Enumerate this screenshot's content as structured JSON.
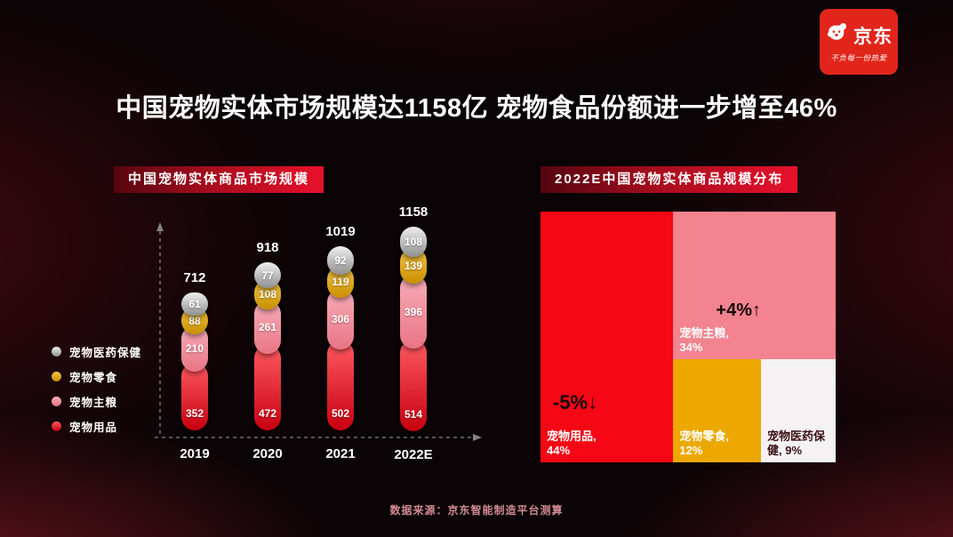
{
  "logo": {
    "brand": "京东",
    "slogan": "不负每一份热爱"
  },
  "title": "中国宠物实体市场规模达1158亿 宠物食品份额进一步增至46%",
  "footer": "数据来源：京东智能制造平台测算",
  "chart_data": [
    {
      "type": "bar",
      "stacked": true,
      "title": "中国宠物实体商品市场规模",
      "categories": [
        "2019",
        "2020",
        "2021",
        "2022E"
      ],
      "totals": [
        712,
        918,
        1019,
        1158
      ],
      "series": [
        {
          "name": "宠物用品",
          "values": [
            352,
            472,
            502,
            514
          ],
          "color": "#e50012",
          "gradient": [
            "#ff5b60",
            "#c70010"
          ]
        },
        {
          "name": "宠物主粮",
          "values": [
            210,
            261,
            306,
            396
          ],
          "color": "#ee8090",
          "gradient": [
            "#f7aeb8",
            "#e97585"
          ]
        },
        {
          "name": "宠物零食",
          "values": [
            88,
            108,
            119,
            139
          ],
          "color": "#dda00e",
          "gradient": [
            "#f2c449",
            "#c99000"
          ]
        },
        {
          "name": "宠物医药保健",
          "values": [
            61,
            77,
            92,
            108
          ],
          "color": "#b5b5b5",
          "gradient": [
            "#efefef",
            "#8f8f8f"
          ]
        }
      ],
      "legend_position": "left",
      "legend_order": [
        "宠物医药保健",
        "宠物零食",
        "宠物主粮",
        "宠物用品"
      ],
      "grid": false,
      "axis_style": "dashed-arrows"
    },
    {
      "type": "treemap",
      "title": "2022E中国宠物实体商品规模分布",
      "items": [
        {
          "name": "宠物用品",
          "share_pct": 44,
          "label": "宠物用品, 44%",
          "change": "-5%↓",
          "color": "#f50715",
          "text_color": "#ffffff"
        },
        {
          "name": "宠物主粮",
          "share_pct": 34,
          "label": "宠物主粮, 34%",
          "change": "+4%↑",
          "color": "#f2838f",
          "text_color": "#ffffff"
        },
        {
          "name": "宠物零食",
          "share_pct": 12,
          "label": "宠物零食, 12%",
          "color": "#eda800",
          "text_color": "#ffffff"
        },
        {
          "name": "宠物医药保健",
          "share_pct": 9,
          "label": "宠物医药保健, 9%",
          "color": "#f4f2f3",
          "text_color": "#3c1016"
        }
      ]
    }
  ]
}
